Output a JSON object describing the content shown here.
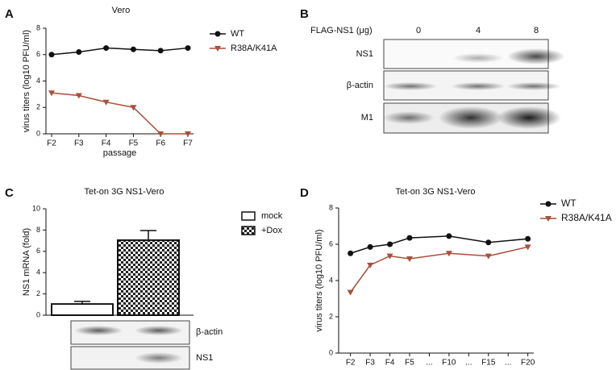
{
  "panel_labels": [
    "A",
    "B",
    "C",
    "D"
  ],
  "chart_data": [
    {
      "type": "line",
      "title": "Vero",
      "y_label": "virus titers (log10 PFU/ml)",
      "x_label": "passage",
      "categories": [
        "F2",
        "F3",
        "F4",
        "F5",
        "F6",
        "F7"
      ],
      "series": [
        {
          "name": "WT",
          "color": "#111111",
          "marker": "circle",
          "values": [
            6.0,
            6.2,
            6.5,
            6.4,
            6.3,
            6.5
          ]
        },
        {
          "name": "R38A/K41A",
          "color": "#a9503a",
          "marker": "triangle-down",
          "values": [
            3.1,
            2.9,
            2.4,
            2.0,
            0,
            0
          ]
        }
      ],
      "ylim": [
        0,
        8
      ],
      "yticks": [
        0,
        2,
        4,
        6,
        8
      ],
      "legend": "outside-right"
    },
    {
      "type": "bar",
      "title": "Tet-on 3G NS1-Vero",
      "y_label": "NS1 mRNA (fold)",
      "series": [
        {
          "name": "mock",
          "pattern": "none",
          "values": [
            1.05
          ],
          "errors": [
            0.25
          ]
        },
        {
          "name": "+Dox",
          "pattern": "checker",
          "values": [
            7.05
          ],
          "errors": [
            0.9
          ]
        }
      ],
      "ylim": [
        0,
        10
      ],
      "yticks": [
        0,
        2,
        4,
        6,
        8,
        10
      ],
      "legend": "outside-right"
    },
    {
      "type": "line",
      "title": "Tet-on 3G NS1-Vero",
      "y_label": "virus titers (log10 PFU/ml)",
      "x_label": "passage",
      "xlim": [
        -0.6,
        9.3
      ],
      "xticks": [
        {
          "value": 0,
          "label": "F2"
        },
        {
          "value": 1,
          "label": "F3"
        },
        {
          "value": 2,
          "label": "F4"
        },
        {
          "value": 3,
          "label": "F5"
        },
        {
          "value": 4,
          "label": "..."
        },
        {
          "value": 5,
          "label": "F10"
        },
        {
          "value": 6,
          "label": "..."
        },
        {
          "value": 7,
          "label": "F15"
        },
        {
          "value": 8,
          "label": "..."
        },
        {
          "value": 9,
          "label": "F20"
        }
      ],
      "series": [
        {
          "name": "WT",
          "color": "#111111",
          "marker": "circle",
          "x": [
            0,
            1,
            2,
            3,
            5,
            7,
            9
          ],
          "values": [
            5.5,
            5.85,
            6.0,
            6.35,
            6.45,
            6.1,
            6.3
          ]
        },
        {
          "name": "R38A/K41A",
          "color": "#a9503a",
          "marker": "triangle-down",
          "x": [
            0,
            1,
            2,
            3,
            5,
            7,
            9
          ],
          "values": [
            3.35,
            4.85,
            5.35,
            5.2,
            5.5,
            5.35,
            5.85
          ]
        }
      ],
      "ylim": [
        0,
        8
      ],
      "yticks": [
        0,
        2,
        4,
        6,
        8
      ],
      "legend": "outside-right"
    }
  ],
  "blot_b": {
    "dose_label": "FLAG-NS1 (μg)",
    "lanes": [
      "0",
      "4",
      "8"
    ],
    "rows": [
      "NS1",
      "β-actin",
      "M1"
    ]
  },
  "blot_c": {
    "rows": [
      "β-actin",
      "NS1"
    ]
  }
}
